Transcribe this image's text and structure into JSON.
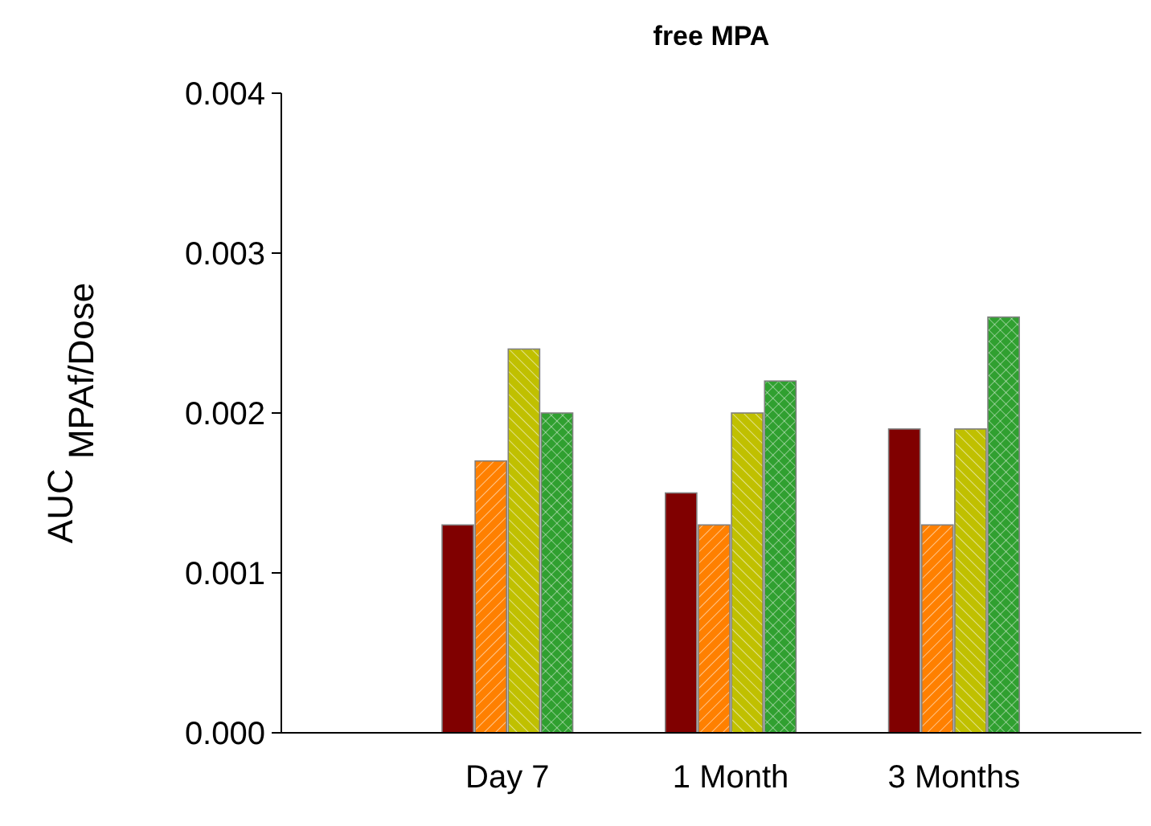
{
  "chart_data": {
    "type": "bar",
    "title": "free MPA",
    "ylabel": "AUC $_{MPAf/Dose}$",
    "categories": [
      "Day 7",
      "1 Month",
      "3 Months"
    ],
    "series": [
      {
        "color": "#800000",
        "values": [
          0.0013,
          0.0015,
          0.0019
        ]
      },
      {
        "color": "#ff8000",
        "values": [
          0.0017,
          0.0013,
          0.0013
        ]
      },
      {
        "color": "#c0c000",
        "values": [
          0.0024,
          0.002,
          0.0019
        ]
      },
      {
        "color": "#30a030",
        "values": [
          0.002,
          0.0022,
          0.0026
        ]
      }
    ],
    "ylim": [
      0,
      0.004
    ],
    "yticks": [
      {
        "value": 0,
        "label": "0.000"
      },
      {
        "value": 0.001,
        "label": "0.001"
      },
      {
        "value": 0.002,
        "label": "0.002"
      },
      {
        "value": 0.003,
        "label": "0.003"
      },
      {
        "value": 0.004,
        "label": "0.004"
      }
    ],
    "grid": false
  }
}
